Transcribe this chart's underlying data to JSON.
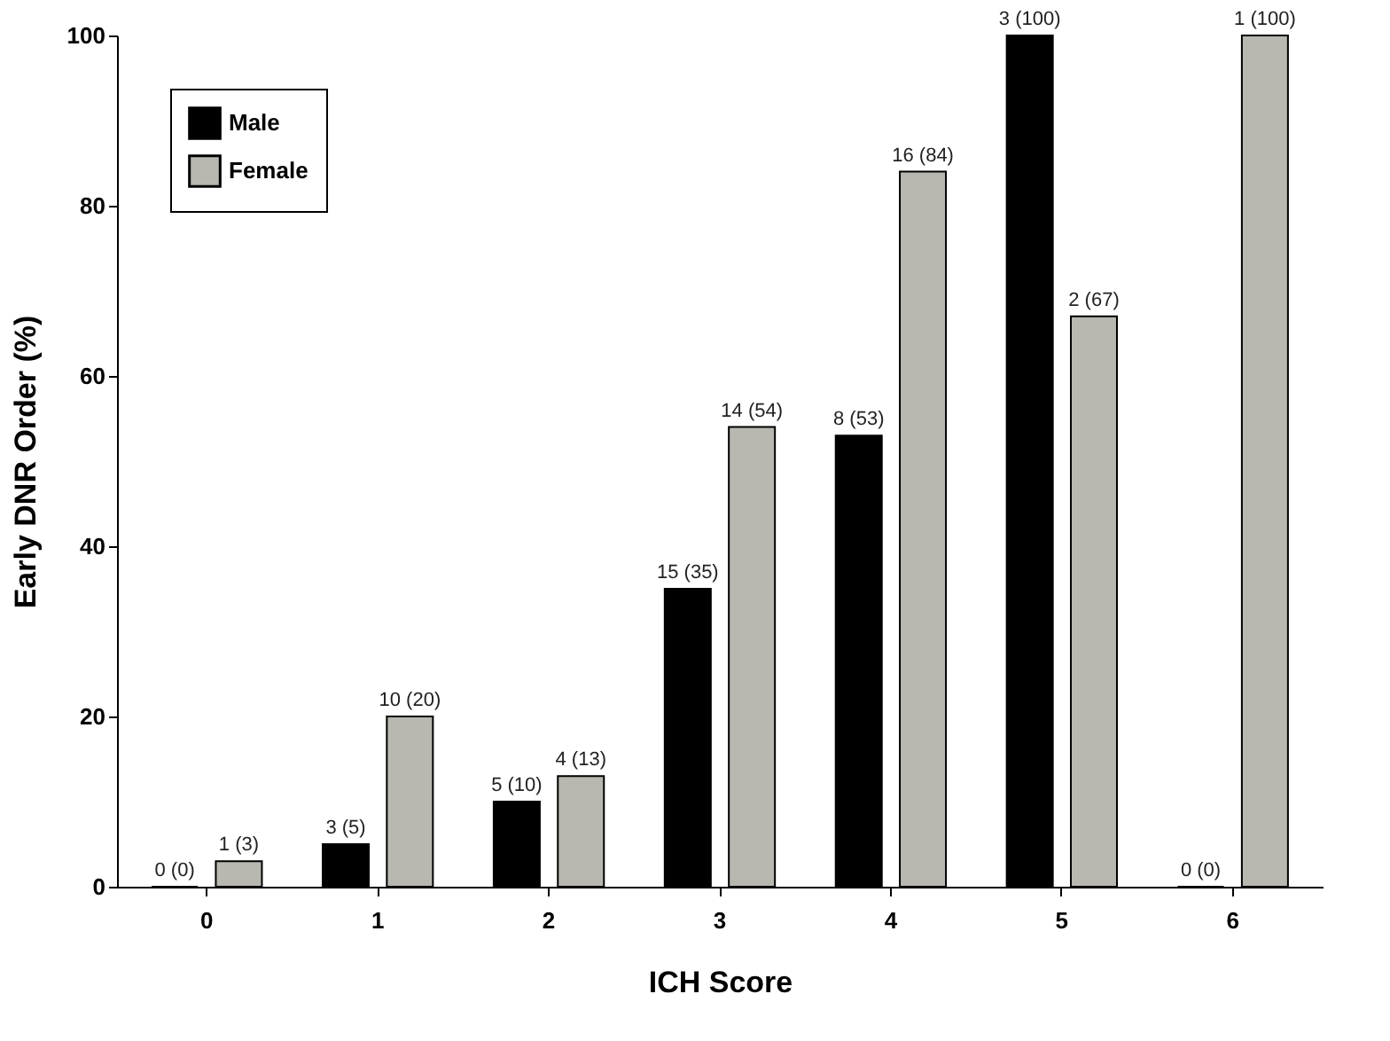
{
  "chart_data": {
    "type": "bar",
    "xlabel": "ICH Score",
    "ylabel": "Early DNR Order (%)",
    "categories": [
      "0",
      "1",
      "2",
      "3",
      "4",
      "5",
      "6"
    ],
    "series": [
      {
        "name": "Male",
        "color": "#000000",
        "values": [
          0,
          5,
          10,
          35,
          53,
          100,
          0
        ],
        "value_labels": [
          "0 (0)",
          "3 (5)",
          "5 (10)",
          "15 (35)",
          "8 (53)",
          "3 (100)",
          "0 (0)"
        ]
      },
      {
        "name": "Female",
        "color": "#b8b8b0",
        "values": [
          3,
          20,
          13,
          54,
          84,
          67,
          100
        ],
        "value_labels": [
          "1 (3)",
          "10 (20)",
          "4 (13)",
          "14 (54)",
          "16 (84)",
          "2 (67)",
          "1 (100)"
        ]
      }
    ],
    "ylim": [
      0,
      100
    ],
    "yticks": [
      0,
      20,
      40,
      60,
      80,
      100
    ],
    "grid": false,
    "legend": "top left"
  }
}
